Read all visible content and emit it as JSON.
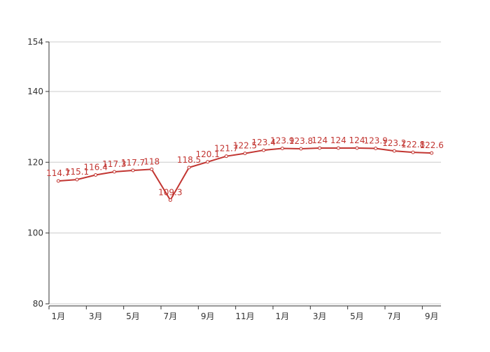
{
  "chart_data": {
    "type": "line",
    "categories": [
      "1月",
      null,
      "3月",
      null,
      "5月",
      null,
      "7月",
      null,
      "9月",
      null,
      "11月",
      null,
      "1月",
      null,
      "3月",
      null,
      "5月",
      null,
      "7月",
      null,
      "9月"
    ],
    "values": [
      114.7,
      115.1,
      116.4,
      117.3,
      117.7,
      118,
      109.3,
      118.5,
      120.1,
      121.7,
      122.5,
      123.4,
      123.9,
      123.8,
      124,
      124,
      124,
      123.9,
      123.2,
      122.8,
      122.6
    ],
    "color": "#c23531",
    "ylim": [
      80,
      154
    ],
    "yticks": [
      80,
      100,
      120,
      140,
      154
    ],
    "grid": true
  }
}
